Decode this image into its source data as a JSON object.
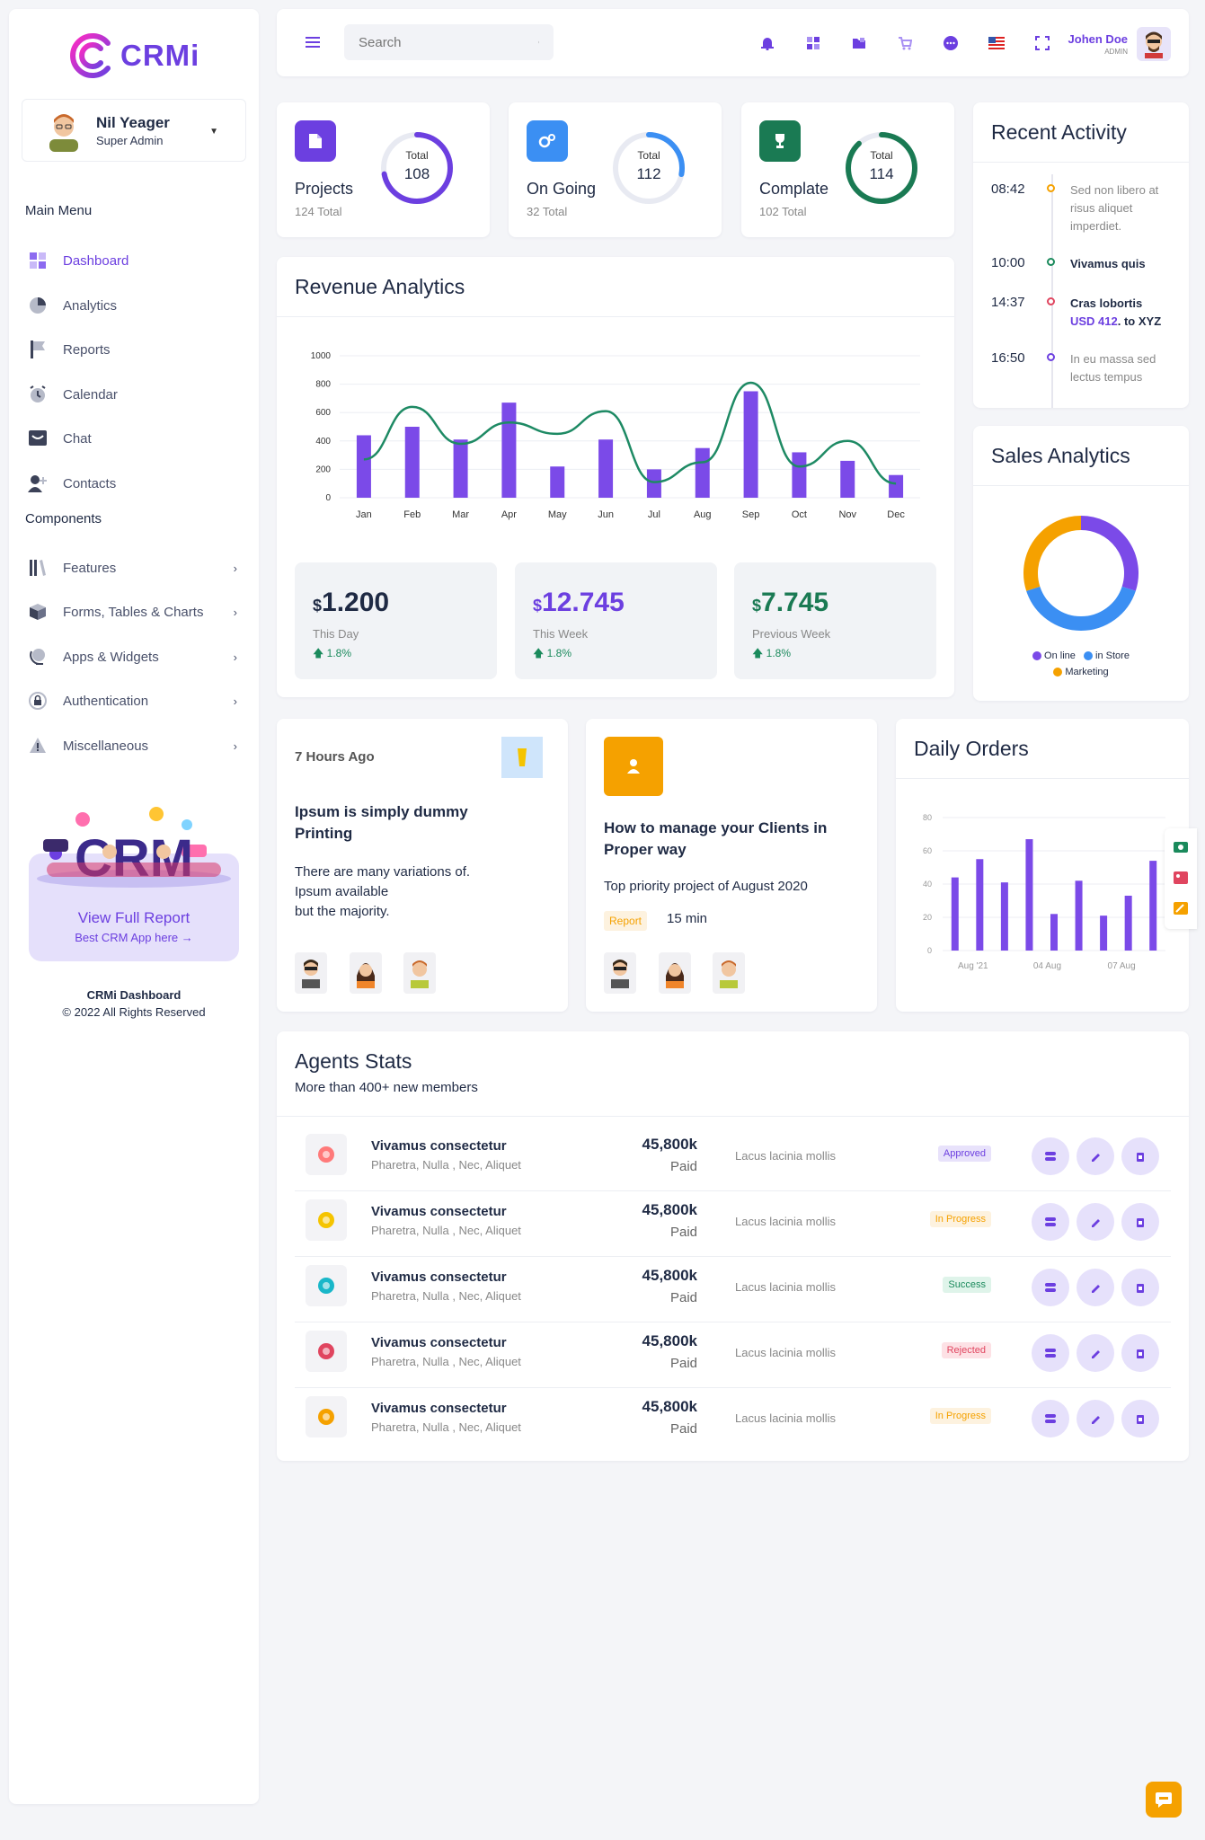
{
  "brand": {
    "name": "CRMi"
  },
  "profile": {
    "name": "Nil Yeager",
    "role": "Super Admin"
  },
  "menu": {
    "main_title": "Main Menu",
    "main_items": [
      {
        "label": "Dashboard",
        "icon": "dashboard-icon"
      },
      {
        "label": "Analytics",
        "icon": "pie-chart-icon"
      },
      {
        "label": "Reports",
        "icon": "flag-icon"
      },
      {
        "label": "Calendar",
        "icon": "clock-icon"
      },
      {
        "label": "Chat",
        "icon": "chat-icon"
      },
      {
        "label": "Contacts",
        "icon": "user-plus-icon"
      }
    ],
    "components_title": "Components",
    "component_items": [
      {
        "label": "Features",
        "icon": "books-icon"
      },
      {
        "label": "Forms, Tables & Charts",
        "icon": "cube-icon"
      },
      {
        "label": "Apps & Widgets",
        "icon": "globe-icon"
      },
      {
        "label": "Authentication",
        "icon": "lock-icon"
      },
      {
        "label": "Miscellaneous",
        "icon": "warning-icon"
      }
    ]
  },
  "promo": {
    "title": "View Full Report",
    "subtitle": "Best CRM App here →",
    "art_text": "CRM"
  },
  "footer": {
    "title": "CRMi Dashboard",
    "copyright": "© 2022 All Rights Reserved"
  },
  "topbar": {
    "search_placeholder": "Search",
    "user_name": "Johen Doe",
    "user_role": "ADMIN",
    "icons": [
      "bell-icon",
      "grid-icon",
      "folder-icon",
      "cart-icon",
      "message-icon",
      "us-flag-icon",
      "fullscreen-icon"
    ]
  },
  "stats": [
    {
      "label": "Projects",
      "sub": "124 Total",
      "ring_title": "Total",
      "ring_value": "108",
      "progress": 0.72,
      "color": "#6c3fe0"
    },
    {
      "label": "On Going",
      "sub": "32 Total",
      "ring_title": "Total",
      "ring_value": "112",
      "progress": 0.28,
      "color": "#3b8ff3"
    },
    {
      "label": "Complate",
      "sub": "102 Total",
      "ring_title": "Total",
      "ring_value": "114",
      "progress": 0.88,
      "color": "#1a7a53"
    }
  ],
  "revenue": {
    "title": "Revenue Analytics",
    "boxes": [
      {
        "currency": "$",
        "value": "1.200",
        "label": "This Day",
        "pct": "1.8%",
        "color": "#1f2a44"
      },
      {
        "currency": "$",
        "value": "12.745",
        "label": "This Week",
        "pct": "1.8%",
        "color": "#6c3fe0"
      },
      {
        "currency": "$",
        "value": "7.745",
        "label": "Previous Week",
        "pct": "1.8%",
        "color": "#1a7a53"
      }
    ]
  },
  "chart_data": [
    {
      "type": "bar",
      "categories": [
        "Jan",
        "Feb",
        "Mar",
        "Apr",
        "May",
        "Jun",
        "Jul",
        "Aug",
        "Sep",
        "Oct",
        "Nov",
        "Dec"
      ],
      "series": [
        {
          "type": "bar",
          "values": [
            440,
            500,
            410,
            670,
            220,
            410,
            200,
            350,
            750,
            320,
            260,
            160
          ]
        },
        {
          "type": "line",
          "values": [
            270,
            640,
            380,
            530,
            450,
            610,
            110,
            250,
            810,
            220,
            400,
            100
          ]
        }
      ],
      "yticks": [
        0,
        200,
        400,
        600,
        800,
        1000
      ],
      "ylim": [
        0,
        1000
      ],
      "colors": {
        "bar": "#7b4ae8",
        "line": "#1e8a64"
      }
    },
    {
      "type": "pie",
      "labels": [
        "On line",
        "in Store",
        "Marketing"
      ],
      "values": [
        30,
        40,
        30
      ],
      "colors": [
        "#7b4ae8",
        "#3b8ff3",
        "#f5a100"
      ]
    },
    {
      "type": "bar",
      "title": "Daily Orders",
      "values": [
        44,
        55,
        41,
        67,
        22,
        42,
        21,
        33,
        54
      ],
      "yticks": [
        0,
        20,
        40,
        60,
        80
      ],
      "xticks": [
        "Aug '21",
        "04 Aug",
        "07 Aug"
      ],
      "ylim": [
        0,
        80
      ],
      "color": "#7b4ae8"
    }
  ],
  "recent": {
    "title": "Recent Activity",
    "items": [
      {
        "time": "08:42",
        "text": "Sed non libero at risus aliquet imperdiet.",
        "color": "#f5a100",
        "bold": false
      },
      {
        "time": "10:00",
        "text": "Vivamus quis",
        "color": "#1a8a5c",
        "bold": true
      },
      {
        "time": "14:37",
        "text": "Cras lobortis",
        "extra": "USD 412",
        "extra2": ". to XYZ",
        "color": "#e0455f",
        "bold": true
      },
      {
        "time": "16:50",
        "text": "In eu massa sed lectus tempus",
        "color": "#6c3fe0",
        "bold": false
      }
    ]
  },
  "sales": {
    "title": "Sales Analytics"
  },
  "news": [
    {
      "time": "7 Hours Ago",
      "title": "Ipsum is simply dummy Printing",
      "body": [
        "There are many variations of.",
        "Ipsum available",
        "but the majority."
      ]
    },
    {
      "title": "How to manage your Clients in Proper way",
      "body": "Top priority project of August 2020",
      "tag": "Report",
      "duration": "15 min"
    }
  ],
  "orders": {
    "title": "Daily Orders"
  },
  "agents": {
    "title": "Agents Stats",
    "subtitle": "More than 400+ new members",
    "rows": [
      {
        "name": "Vivamus consectetur",
        "sub": "Pharetra, Nulla , Nec, Aliquet",
        "amount": "45,800k",
        "paid": "Paid",
        "desc": "Lacus lacinia mollis",
        "status": "Approved",
        "status_bg": "#e8e2fb",
        "status_fg": "#6c3fe0",
        "icon": "colors-icon"
      },
      {
        "name": "Vivamus consectetur",
        "sub": "Pharetra, Nulla , Nec, Aliquet",
        "amount": "45,800k",
        "paid": "Paid",
        "desc": "Lacus lacinia mollis",
        "status": "In Progress",
        "status_bg": "#fdf2df",
        "status_fg": "#f5a100",
        "icon": "sun-icon"
      },
      {
        "name": "Vivamus consectetur",
        "sub": "Pharetra, Nulla , Nec, Aliquet",
        "amount": "45,800k",
        "paid": "Paid",
        "desc": "Lacus lacinia mollis",
        "status": "Success",
        "status_bg": "#dff4ea",
        "status_fg": "#1a8a5c",
        "icon": "settings-check-icon"
      },
      {
        "name": "Vivamus consectetur",
        "sub": "Pharetra, Nulla , Nec, Aliquet",
        "amount": "45,800k",
        "paid": "Paid",
        "desc": "Lacus lacinia mollis",
        "status": "Rejected",
        "status_bg": "#fde1e5",
        "status_fg": "#e0455f",
        "icon": "palette-icon"
      },
      {
        "name": "Vivamus consectetur",
        "sub": "Pharetra, Nulla , Nec, Aliquet",
        "amount": "45,800k",
        "paid": "Paid",
        "desc": "Lacus lacinia mollis",
        "status": "In Progress",
        "status_bg": "#fdf2df",
        "status_fg": "#f5a100",
        "icon": "trophy-icon"
      }
    ]
  }
}
